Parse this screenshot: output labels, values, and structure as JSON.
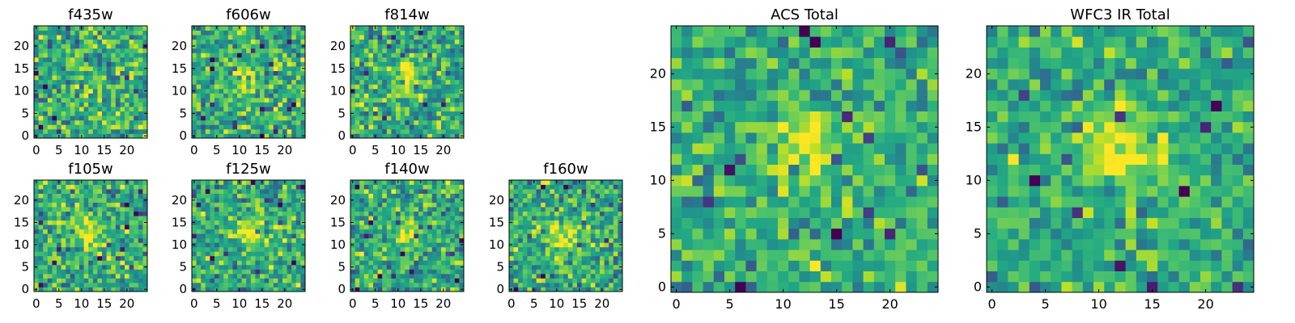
{
  "chart_data": [
    {
      "type": "heatmap",
      "title": "f435w",
      "xlabel": "",
      "ylabel": "",
      "xlim": [
        -0.5,
        24.5
      ],
      "ylim": [
        -0.5,
        24.5
      ],
      "grid_size": 25,
      "x_ticks": [
        0,
        5,
        10,
        15,
        20
      ],
      "y_ticks": [
        0,
        5,
        10,
        15,
        20
      ],
      "colormap": "viridis",
      "source_peak": [
        12,
        11
      ],
      "source_strength": 0.12,
      "noise": 0.22,
      "seed": 11
    },
    {
      "type": "heatmap",
      "title": "f606w",
      "xlabel": "",
      "ylabel": "",
      "xlim": [
        -0.5,
        24.5
      ],
      "ylim": [
        -0.5,
        24.5
      ],
      "grid_size": 25,
      "x_ticks": [
        0,
        5,
        10,
        15,
        20
      ],
      "y_ticks": [
        0,
        5,
        10,
        15,
        20
      ],
      "colormap": "viridis",
      "source_peak": [
        12,
        12
      ],
      "source_strength": 0.3,
      "noise": 0.2,
      "seed": 23
    },
    {
      "type": "heatmap",
      "title": "f814w",
      "xlabel": "",
      "ylabel": "",
      "xlim": [
        -0.5,
        24.5
      ],
      "ylim": [
        -0.5,
        24.5
      ],
      "grid_size": 25,
      "x_ticks": [
        0,
        5,
        10,
        15,
        20
      ],
      "y_ticks": [
        0,
        5,
        10,
        15,
        20
      ],
      "colormap": "viridis",
      "source_peak": [
        12,
        13
      ],
      "source_strength": 0.35,
      "noise": 0.2,
      "seed": 37
    },
    {
      "type": "heatmap",
      "title": "f105w",
      "xlabel": "",
      "ylabel": "",
      "xlim": [
        -0.5,
        24.5
      ],
      "ylim": [
        -0.5,
        24.5
      ],
      "grid_size": 25,
      "x_ticks": [
        0,
        5,
        10,
        15,
        20
      ],
      "y_ticks": [
        0,
        5,
        10,
        15,
        20
      ],
      "colormap": "viridis",
      "source_peak": [
        11,
        12
      ],
      "source_strength": 0.35,
      "noise": 0.2,
      "seed": 41
    },
    {
      "type": "heatmap",
      "title": "f125w",
      "xlabel": "",
      "ylabel": "",
      "xlim": [
        -0.5,
        24.5
      ],
      "ylim": [
        -0.5,
        24.5
      ],
      "grid_size": 25,
      "x_ticks": [
        0,
        5,
        10,
        15,
        20
      ],
      "y_ticks": [
        0,
        5,
        10,
        15,
        20
      ],
      "colormap": "viridis",
      "source_peak": [
        12,
        13
      ],
      "source_strength": 0.3,
      "noise": 0.2,
      "seed": 53
    },
    {
      "type": "heatmap",
      "title": "f140w",
      "xlabel": "",
      "ylabel": "",
      "xlim": [
        -0.5,
        24.5
      ],
      "ylim": [
        -0.5,
        24.5
      ],
      "grid_size": 25,
      "x_ticks": [
        0,
        5,
        10,
        15,
        20
      ],
      "y_ticks": [
        0,
        5,
        10,
        15,
        20
      ],
      "colormap": "viridis",
      "source_peak": [
        12,
        12
      ],
      "source_strength": 0.3,
      "noise": 0.2,
      "seed": 67
    },
    {
      "type": "heatmap",
      "title": "f160w",
      "xlabel": "",
      "ylabel": "",
      "xlim": [
        -0.5,
        24.5
      ],
      "ylim": [
        -0.5,
        24.5
      ],
      "grid_size": 25,
      "x_ticks": [
        0,
        5,
        10,
        15,
        20
      ],
      "y_ticks": [
        0,
        5,
        10,
        15,
        20
      ],
      "colormap": "viridis",
      "source_peak": [
        12,
        12
      ],
      "source_strength": 0.35,
      "noise": 0.2,
      "seed": 79
    },
    {
      "type": "heatmap",
      "title": "ACS Total",
      "xlabel": "",
      "ylabel": "",
      "xlim": [
        -0.5,
        24.5
      ],
      "ylim": [
        -0.5,
        24.5
      ],
      "grid_size": 25,
      "x_ticks": [
        0,
        5,
        10,
        15,
        20
      ],
      "y_ticks": [
        0,
        5,
        10,
        15,
        20
      ],
      "colormap": "viridis",
      "source_peak": [
        12,
        13
      ],
      "source_strength": 0.3,
      "noise": 0.17,
      "seed": 97
    },
    {
      "type": "heatmap",
      "title": "WFC3 IR Total",
      "xlabel": "",
      "ylabel": "",
      "xlim": [
        -0.5,
        24.5
      ],
      "ylim": [
        -0.5,
        24.5
      ],
      "grid_size": 25,
      "x_ticks": [
        0,
        5,
        10,
        15,
        20
      ],
      "y_ticks": [
        0,
        5,
        10,
        15,
        20
      ],
      "colormap": "viridis",
      "source_peak": [
        12,
        13
      ],
      "source_strength": 0.42,
      "noise": 0.16,
      "seed": 113
    }
  ]
}
